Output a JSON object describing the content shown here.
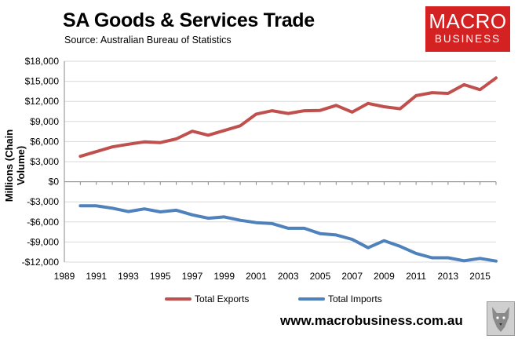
{
  "header": {
    "title": "SA Goods & Services Trade",
    "source": "Source:  Australian Bureau of Statistics"
  },
  "logo": {
    "line1": "MACRO",
    "line2": "BUSINESS",
    "color": "#d42222"
  },
  "website": "www.macrobusiness.com.au",
  "chart_data": {
    "type": "line",
    "title": "SA Goods & Services Trade",
    "ylabel": "Millions (Chain Volume)",
    "xlabel": "",
    "ylim": [
      -12000,
      18000
    ],
    "yticks": [
      -12000,
      -9000,
      -6000,
      -3000,
      0,
      3000,
      6000,
      9000,
      12000,
      15000,
      18000
    ],
    "ytick_labels": [
      "-$12,000",
      "-$9,000",
      "-$6,000",
      "-$3,000",
      "$0",
      "$3,000",
      "$6,000",
      "$9,000",
      "$12,000",
      "$15,000",
      "$18,000"
    ],
    "xlim": [
      1989,
      2016
    ],
    "xtick_labels": [
      "1989",
      "1991",
      "1993",
      "1995",
      "1997",
      "1999",
      "2001",
      "2003",
      "2005",
      "2007",
      "2009",
      "2011",
      "2013",
      "2015"
    ],
    "grid": true,
    "legend": "bottom",
    "x": [
      1990,
      1991,
      1992,
      1993,
      1994,
      1995,
      1996,
      1997,
      1998,
      1999,
      2000,
      2001,
      2002,
      2003,
      2004,
      2005,
      2006,
      2007,
      2008,
      2009,
      2010,
      2011,
      2012,
      2013,
      2014,
      2015,
      2016
    ],
    "series": [
      {
        "name": "Total Exports",
        "color": "#c0504d",
        "values": [
          3800,
          4500,
          5200,
          5600,
          5950,
          5850,
          6400,
          7550,
          6950,
          7650,
          8350,
          10100,
          10600,
          10200,
          10600,
          10650,
          11400,
          10400,
          11700,
          11200,
          10900,
          12850,
          13300,
          13200,
          14500,
          13750,
          15500
        ]
      },
      {
        "name": "Total Imports",
        "color": "#4f81bd",
        "values": [
          -3600,
          -3600,
          -3950,
          -4450,
          -4050,
          -4500,
          -4250,
          -4950,
          -5450,
          -5250,
          -5750,
          -6100,
          -6250,
          -6950,
          -6950,
          -7750,
          -7950,
          -8600,
          -9850,
          -8800,
          -9650,
          -10700,
          -11350,
          -11350,
          -11800,
          -11450,
          -11850
        ]
      }
    ]
  }
}
